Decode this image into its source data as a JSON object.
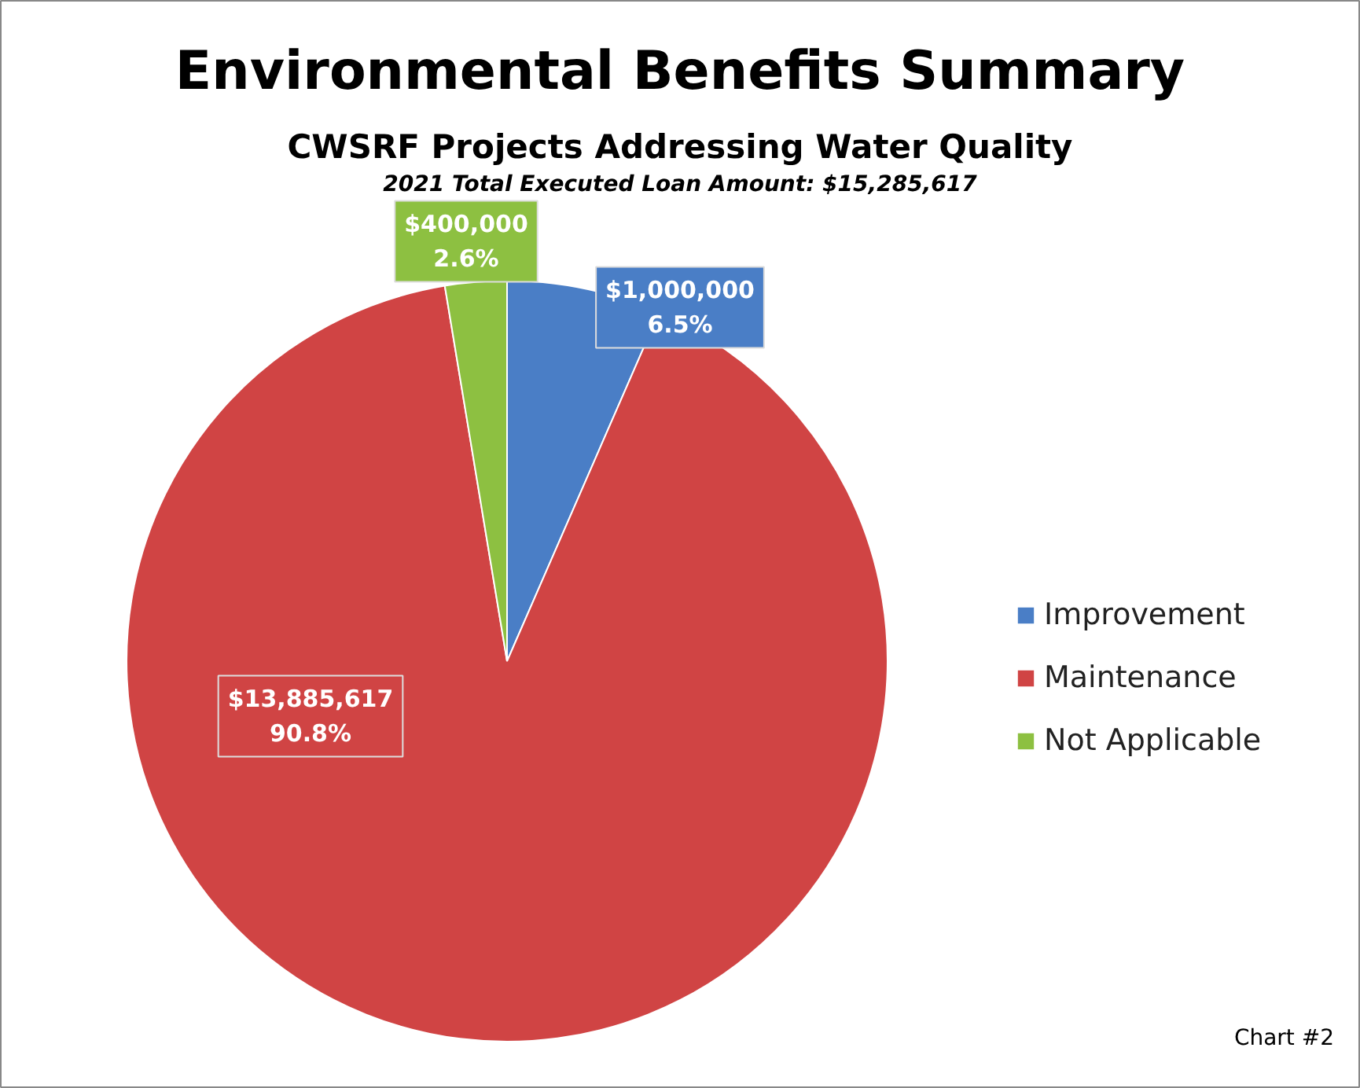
{
  "chart_data": {
    "type": "pie",
    "title": "Environmental Benefits Summary",
    "subtitle": "CWSRF Projects Addressing Water Quality",
    "categories": [
      "Improvement",
      "Maintenance",
      "Not Applicable"
    ],
    "values": [
      1000000,
      13885617,
      400000
    ],
    "colors": [
      "#4a7ec6",
      "#d04444",
      "#8dc041"
    ],
    "value_labels": [
      "$1,000,000\n6.5%",
      "$13,885,617\n90.8%",
      "$400,000\n2.6%"
    ],
    "legend": "right",
    "annotations": [
      "2021 Total Executed Loan Amount: $15,285,617",
      "Chart #2"
    ]
  }
}
